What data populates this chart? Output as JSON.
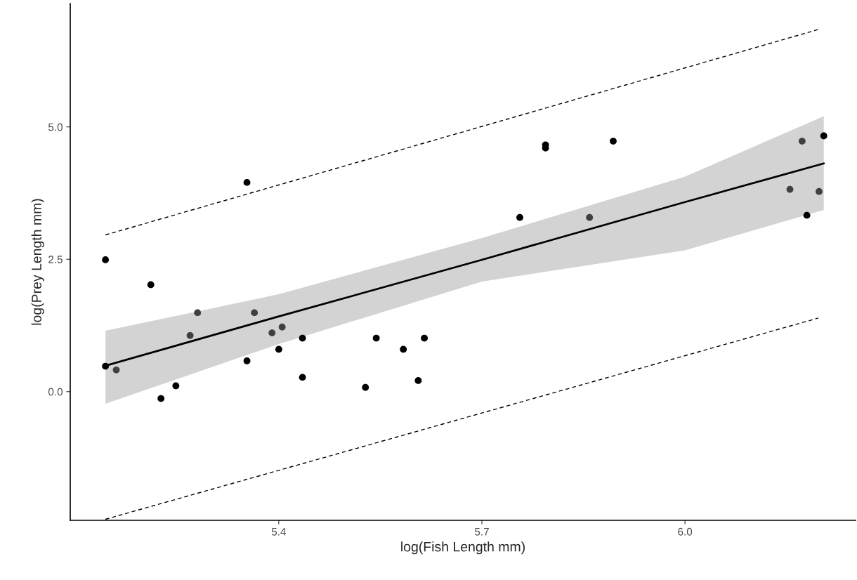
{
  "chart_data": {
    "type": "scatter",
    "xlabel": "log(Fish Length mm)",
    "ylabel": "log(Prey Length mm)",
    "xlim": [
      5.092,
      6.252
    ],
    "ylim": [
      -2.43,
      7.33
    ],
    "xticks": [
      {
        "value": 5.4,
        "label": "5.4"
      },
      {
        "value": 5.7,
        "label": "5.7"
      },
      {
        "value": 6.0,
        "label": "6.0"
      }
    ],
    "yticks": [
      {
        "value": 0.0,
        "label": "0.0"
      },
      {
        "value": 2.5,
        "label": "2.5"
      },
      {
        "value": 5.0,
        "label": "5.0"
      }
    ],
    "grid": false,
    "legend": false,
    "series": [
      {
        "marker": "circle",
        "x": [
          5.144,
          5.211,
          5.28,
          5.364,
          5.269,
          5.39,
          5.405,
          5.435,
          5.544,
          5.615,
          5.4,
          5.584,
          5.353,
          5.144,
          5.16,
          5.435,
          5.528,
          5.606,
          5.248,
          5.226,
          5.353,
          5.794,
          5.794,
          5.894,
          5.756,
          5.859,
          6.173,
          6.205,
          6.155,
          6.198,
          6.18
        ],
        "values": [
          2.49,
          2.02,
          1.49,
          1.49,
          1.06,
          1.11,
          1.22,
          1.01,
          1.01,
          1.01,
          0.8,
          0.8,
          0.58,
          0.48,
          0.41,
          0.27,
          0.08,
          0.21,
          0.11,
          -0.13,
          3.95,
          4.6,
          4.66,
          4.73,
          3.29,
          3.29,
          4.73,
          4.83,
          3.82,
          3.78,
          3.33
        ],
        "colors": [
          "#000000",
          "#000000",
          "#404040",
          "#404040",
          "#404040",
          "#404040",
          "#404040",
          "#000000",
          "#000000",
          "#000000",
          "#000000",
          "#000000",
          "#000000",
          "#000000",
          "#404040",
          "#000000",
          "#000000",
          "#000000",
          "#000000",
          "#000000",
          "#000000",
          "#000000",
          "#000000",
          "#000000",
          "#000000",
          "#404040",
          "#404040",
          "#000000",
          "#404040",
          "#404040",
          "#000000"
        ]
      },
      {
        "type": "line",
        "color": "#000000",
        "line_style": "solid",
        "marker": "none",
        "x": [
          5.144,
          5.4,
          5.7,
          6.0,
          6.205
        ],
        "values": [
          0.49,
          1.42,
          2.49,
          3.58,
          4.31
        ],
        "lower": [
          -0.23,
          0.9,
          2.08,
          2.67,
          3.43
        ],
        "upper": [
          1.15,
          1.84,
          2.9,
          4.06,
          5.2
        ]
      },
      {
        "type": "line",
        "color": "#000000",
        "line_style": "dashed",
        "marker": "none",
        "x": [
          5.144,
          6.197
        ],
        "values": [
          2.96,
          6.84
        ]
      },
      {
        "type": "line",
        "color": "#000000",
        "line_style": "dashed",
        "marker": "none",
        "x": [
          5.144,
          6.197
        ],
        "values": [
          -2.41,
          1.39
        ]
      }
    ]
  }
}
